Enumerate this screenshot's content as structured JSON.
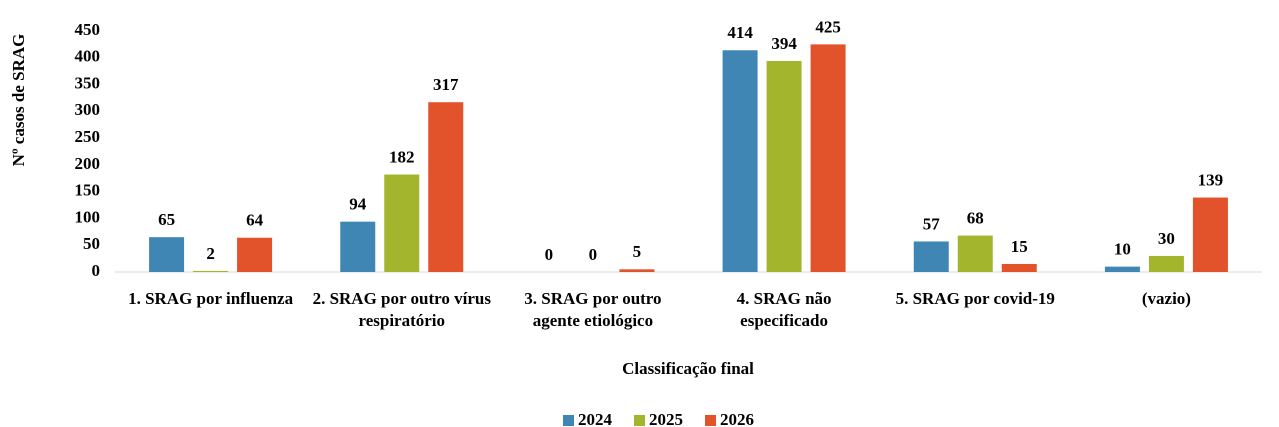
{
  "chart_data": {
    "type": "bar",
    "y_label": "Nº  casos de SRAG",
    "x_label": "Classificação final",
    "categories": [
      "1. SRAG por influenza",
      "2. SRAG por outro vírus respiratório",
      "3. SRAG por outro agente etiológico",
      "4. SRAG não especificado",
      "5. SRAG por covid-19",
      "(vazio)"
    ],
    "series": [
      {
        "name": "2024",
        "color": "#3f86b5",
        "values": [
          65,
          94,
          0,
          414,
          57,
          10
        ]
      },
      {
        "name": "2025",
        "color": "#a3b52c",
        "values": [
          2,
          182,
          0,
          394,
          68,
          30
        ]
      },
      {
        "name": "2026",
        "color": "#e2522b",
        "values": [
          64,
          317,
          5,
          425,
          15,
          139
        ]
      }
    ],
    "ylim": [
      0,
      450
    ],
    "yticks": [
      0,
      50,
      100,
      150,
      200,
      250,
      300,
      350,
      400,
      450
    ],
    "grid": false,
    "legend": "bottom"
  }
}
